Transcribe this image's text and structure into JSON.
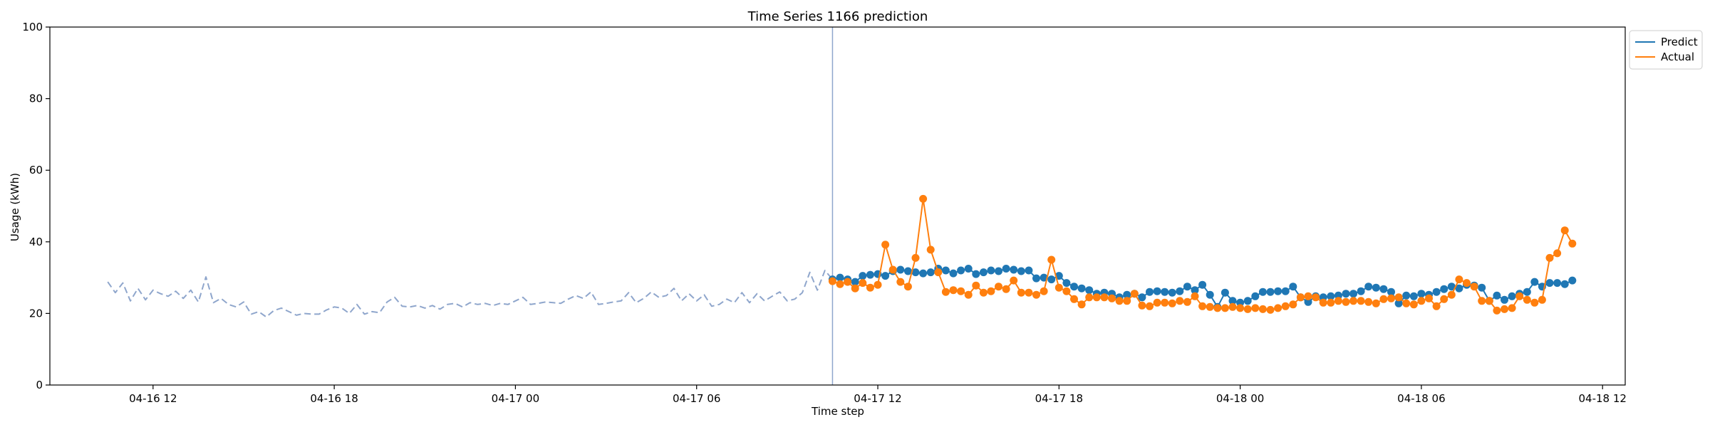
{
  "chart_data": {
    "type": "line",
    "title": "Time Series 1166 prediction",
    "xlabel": "Time step",
    "ylabel": "Usage (kWh)",
    "ylim": [
      0,
      100
    ],
    "xlim": [
      "2024-04-16T08:35",
      "2024-04-18T12:45"
    ],
    "y_ticks": [
      0,
      20,
      40,
      60,
      80,
      100
    ],
    "x_ticks": [
      {
        "label": "04-16 12",
        "t": "2024-04-16T12:00"
      },
      {
        "label": "04-16 18",
        "t": "2024-04-16T18:00"
      },
      {
        "label": "04-17 00",
        "t": "2024-04-17T00:00"
      },
      {
        "label": "04-17 06",
        "t": "2024-04-17T06:00"
      },
      {
        "label": "04-17 12",
        "t": "2024-04-17T12:00"
      },
      {
        "label": "04-17 18",
        "t": "2024-04-17T18:00"
      },
      {
        "label": "04-18 00",
        "t": "2024-04-18T00:00"
      },
      {
        "label": "04-18 06",
        "t": "2024-04-18T06:00"
      },
      {
        "label": "04-18 12",
        "t": "2024-04-18T12:00"
      }
    ],
    "grid": false,
    "legend_position": "top-right outside",
    "forecast_start": "2024-04-17T10:30",
    "series": [
      {
        "role": "history",
        "color": "#8fa6cc",
        "linestyle": "dashed",
        "start": "2024-04-16T10:30",
        "step_minutes": 15,
        "values": [
          28.8,
          25.8,
          28.5,
          23.5,
          27.0,
          23.8,
          26.5,
          25.5,
          24.8,
          26.2,
          24.2,
          26.5,
          23.2,
          30.2,
          23.0,
          24.2,
          22.5,
          21.8,
          23.2,
          19.8,
          20.5,
          19.0,
          20.8,
          21.5,
          20.5,
          19.5,
          20.0,
          19.8,
          19.8,
          21.0,
          21.8,
          21.5,
          20.0,
          22.5,
          19.8,
          20.5,
          20.2,
          23.2,
          24.5,
          22.0,
          21.8,
          22.2,
          21.5,
          22.2,
          21.2,
          22.5,
          22.8,
          21.8,
          23.0,
          22.5,
          22.8,
          22.2,
          22.8,
          22.5,
          23.5,
          24.5,
          22.5,
          22.8,
          23.2,
          23.0,
          22.8,
          24.0,
          25.0,
          24.2,
          26.0,
          22.5,
          22.8,
          23.2,
          23.5,
          25.8,
          23.0,
          24.2,
          26.0,
          24.5,
          25.0,
          27.0,
          23.5,
          25.5,
          23.5,
          25.2,
          22.0,
          22.5,
          24.0,
          23.0,
          25.8,
          23.0,
          25.5,
          23.5,
          24.8,
          26.0,
          23.5,
          24.0,
          25.8,
          31.5,
          26.5,
          32.0,
          29.5
        ]
      },
      {
        "name": "Predict",
        "color": "#1f77b4",
        "start": "2024-04-17T10:30",
        "step_minutes": 15,
        "values": [
          29.5,
          30.0,
          29.5,
          28.8,
          30.5,
          30.8,
          31.0,
          30.5,
          31.8,
          32.2,
          31.8,
          31.5,
          31.2,
          31.5,
          32.5,
          32.0,
          31.2,
          32.0,
          32.5,
          31.0,
          31.5,
          32.0,
          31.8,
          32.5,
          32.2,
          31.8,
          32.0,
          29.8,
          30.0,
          29.5,
          30.5,
          28.5,
          27.5,
          27.0,
          26.5,
          25.5,
          25.8,
          25.5,
          24.5,
          25.2,
          25.5,
          24.5,
          26.0,
          26.2,
          26.0,
          25.8,
          26.2,
          27.5,
          26.5,
          28.0,
          25.2,
          21.8,
          25.8,
          23.5,
          23.0,
          23.5,
          24.8,
          26.0,
          26.0,
          26.2,
          26.2,
          27.5,
          24.5,
          23.2,
          24.8,
          24.5,
          24.8,
          25.0,
          25.5,
          25.5,
          26.2,
          27.5,
          27.2,
          26.8,
          26.0,
          22.8,
          25.0,
          24.8,
          25.5,
          25.2,
          26.0,
          26.8,
          27.5,
          27.0,
          28.0,
          27.8,
          27.2,
          23.5,
          25.0,
          23.8,
          24.8,
          25.5,
          26.0,
          28.8,
          27.5,
          28.5,
          28.5,
          28.2,
          29.2
        ]
      },
      {
        "name": "Actual",
        "color": "#ff7f0e",
        "start": "2024-04-17T10:30",
        "step_minutes": 15,
        "values": [
          29.0,
          28.2,
          28.8,
          27.0,
          28.5,
          27.2,
          28.0,
          39.2,
          32.2,
          28.8,
          27.5,
          35.5,
          52.0,
          37.8,
          31.5,
          26.0,
          26.5,
          26.2,
          25.2,
          27.8,
          25.8,
          26.2,
          27.5,
          26.8,
          29.2,
          25.8,
          25.8,
          25.2,
          26.2,
          35.0,
          27.2,
          26.2,
          24.0,
          22.5,
          24.5,
          24.5,
          24.5,
          24.2,
          23.5,
          23.5,
          25.5,
          22.2,
          22.0,
          23.0,
          23.0,
          22.8,
          23.5,
          23.2,
          24.8,
          22.0,
          21.8,
          21.5,
          21.5,
          21.8,
          21.5,
          21.2,
          21.5,
          21.2,
          21.0,
          21.5,
          22.0,
          22.5,
          24.5,
          24.8,
          24.5,
          23.0,
          23.0,
          23.5,
          23.2,
          23.5,
          23.5,
          23.2,
          22.8,
          24.0,
          24.2,
          24.5,
          22.8,
          22.5,
          23.5,
          24.2,
          22.0,
          24.0,
          25.2,
          29.5,
          28.5,
          27.5,
          23.5,
          23.5,
          20.8,
          21.2,
          21.5,
          24.8,
          23.8,
          23.0,
          23.8,
          35.5,
          36.8,
          43.2,
          39.5
        ]
      }
    ]
  }
}
